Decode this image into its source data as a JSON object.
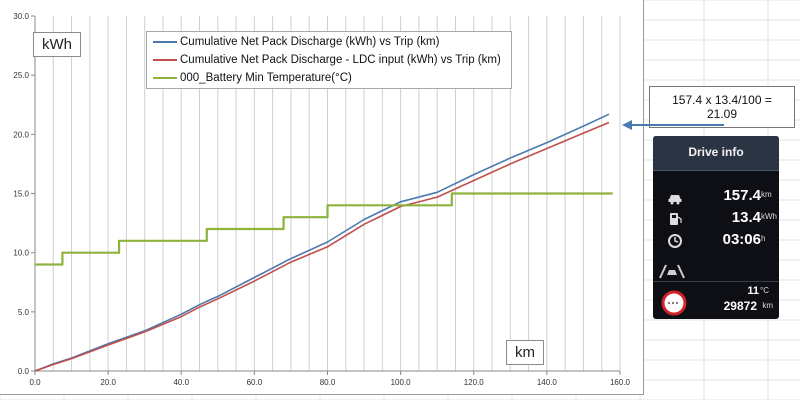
{
  "chart_data": {
    "type": "line",
    "xlabel": "km",
    "ylabel": "kWh",
    "xlim": [
      0,
      160
    ],
    "ylim": [
      0,
      30
    ],
    "xticks": [
      "0.0",
      "20.0",
      "40.0",
      "60.0",
      "80.0",
      "100.0",
      "120.0",
      "140.0",
      "160.0"
    ],
    "yticks": [
      "0.0",
      "5.0",
      "10.0",
      "15.0",
      "20.0",
      "25.0",
      "30.0"
    ],
    "gridlines": "vertical",
    "legend_position": "top-center",
    "series": [
      {
        "name": "Cumulative Net Pack Discharge (kWh) vs Trip (km)",
        "color": "#4a7ab0",
        "x": [
          0,
          5,
          10,
          20,
          30,
          40,
          45,
          50,
          60,
          70,
          80,
          90,
          100,
          110,
          120,
          130,
          140,
          150,
          157
        ],
        "y": [
          0,
          0.6,
          1.1,
          2.3,
          3.4,
          4.8,
          5.6,
          6.3,
          7.9,
          9.5,
          10.9,
          12.8,
          14.3,
          15.1,
          16.6,
          18.0,
          19.3,
          20.7,
          21.7
        ]
      },
      {
        "name": "Cumulative Net Pack Discharge - LDC input (kWh) vs Trip (km)",
        "color": "#c0504d",
        "x": [
          0,
          5,
          10,
          20,
          30,
          40,
          45,
          50,
          60,
          70,
          80,
          90,
          100,
          110,
          120,
          130,
          140,
          150,
          157
        ],
        "y": [
          0,
          0.55,
          1.05,
          2.2,
          3.3,
          4.6,
          5.4,
          6.1,
          7.6,
          9.2,
          10.5,
          12.4,
          13.9,
          14.7,
          16.1,
          17.5,
          18.8,
          20.1,
          21.0
        ]
      },
      {
        "name": "000_Battery Min Temperature(°C)",
        "color": "#8db33d",
        "x": [
          0,
          7.5,
          7.5,
          23,
          23,
          47,
          47,
          68,
          68,
          80,
          80,
          114,
          114,
          158
        ],
        "y": [
          9,
          9,
          10,
          10,
          11,
          11,
          12,
          12,
          13,
          13,
          14,
          14,
          15,
          15
        ]
      }
    ]
  },
  "annotation": "157.4 x 13.4/100 = 21.09",
  "drive_info": {
    "title": "Drive info",
    "distance_value": "157.4",
    "distance_unit": "km",
    "efficiency_value": "13.4",
    "efficiency_unit": "kWh",
    "time_value": "03:06",
    "time_unit": "h",
    "temperature_value": "11",
    "temperature_unit": "°C",
    "odometer_value": "29872",
    "odometer_unit": "km"
  }
}
